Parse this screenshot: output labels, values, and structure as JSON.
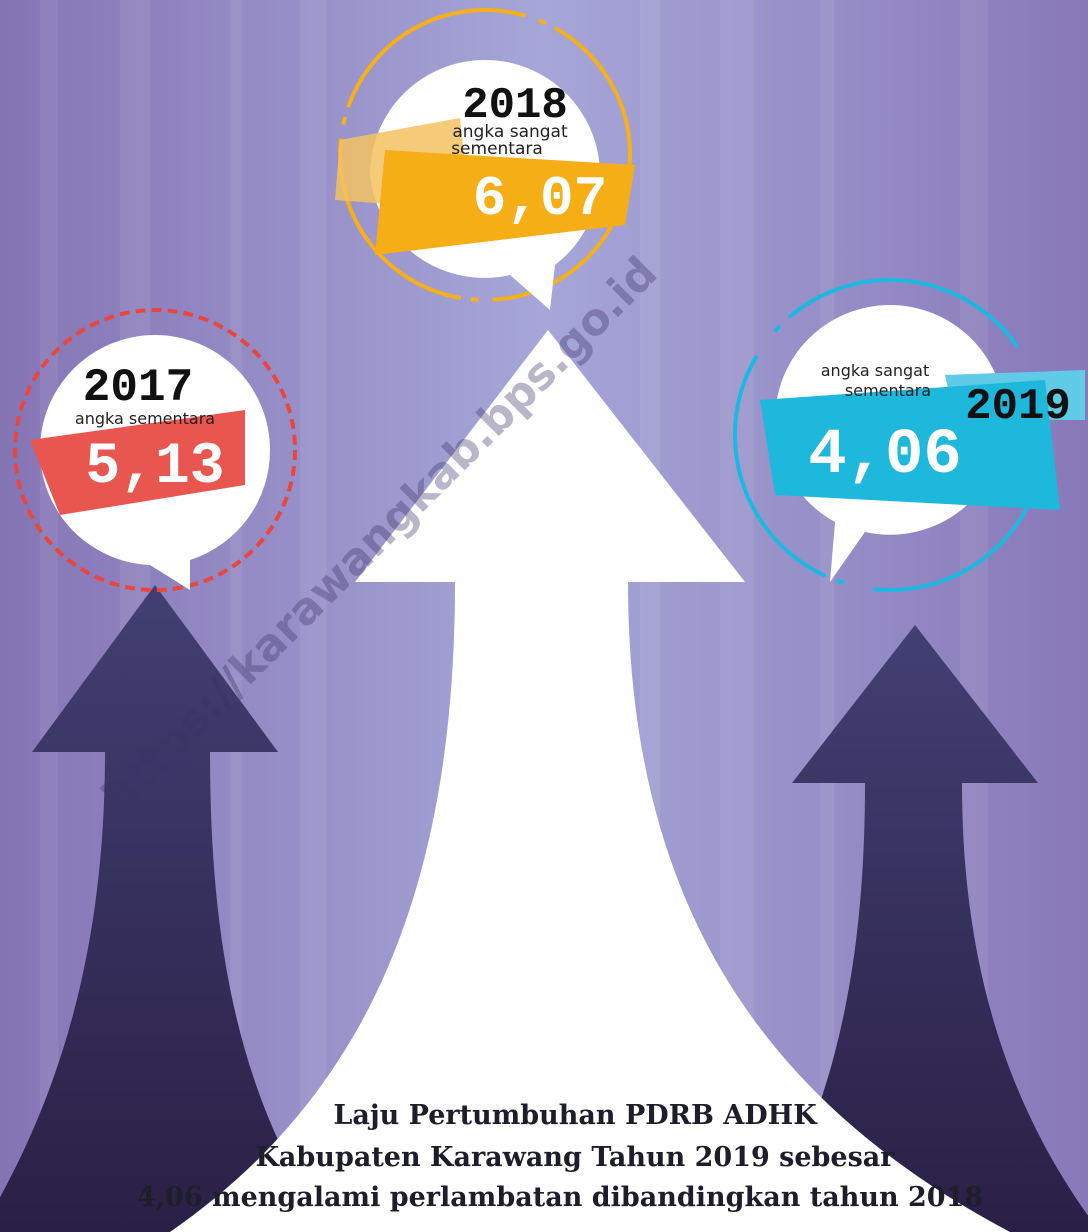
{
  "watermark": "https://karawangkab.bps.go.id",
  "items": [
    {
      "year": "2017",
      "note": [
        "angka sementara"
      ],
      "value": "5,13"
    },
    {
      "year": "2018",
      "note": [
        "angka sangat",
        "sementara"
      ],
      "value": "6,07"
    },
    {
      "year": "2019",
      "note": [
        "angka sangat",
        "sementara"
      ],
      "value": "4,06"
    }
  ],
  "caption": {
    "lines": [
      "Laju Pertumbuhan PDRB ADHK",
      "Kabupaten Karawang Tahun 2019 sebesar",
      "4,06 mengalami perlambatan dibandingkan tahun 2018"
    ]
  }
}
